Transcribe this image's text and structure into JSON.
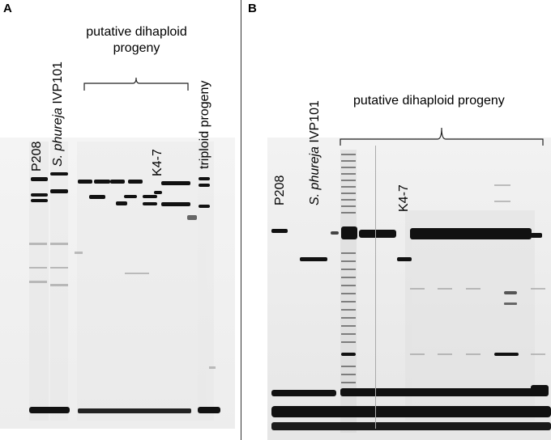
{
  "panel_a": {
    "letter": "A",
    "lane_labels": {
      "p208": "P208",
      "phureja_italic": "S. phureja",
      "phureja_rest": " IVP101",
      "k47": "K4-7",
      "triploid": "triploid progeny"
    },
    "group_label_line1": "putative dihaploid",
    "group_label_line2": "progeny"
  },
  "panel_b": {
    "letter": "B",
    "lane_labels": {
      "p208": "P208",
      "phureja_italic": "S. phureja",
      "phureja_rest": " IVP101",
      "k47": "K4-7"
    },
    "group_label": "putative dihaploid progeny"
  },
  "colors": {
    "gel_bg_a": "#f3f3f3",
    "gel_bg_b": "#eeeeee",
    "band": "#111111",
    "faint_band": "#9a9a9a"
  }
}
